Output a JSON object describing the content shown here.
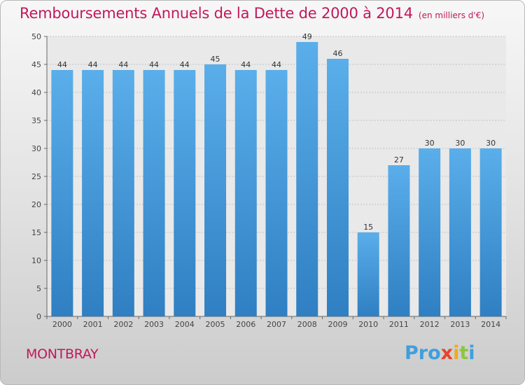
{
  "chart_data": {
    "type": "bar",
    "title": "Remboursements Annuels de la Dette de 2000 à 2014",
    "subtitle": "(en milliers d'€)",
    "categories": [
      "2000",
      "2001",
      "2002",
      "2003",
      "2004",
      "2005",
      "2006",
      "2007",
      "2008",
      "2009",
      "2010",
      "2011",
      "2012",
      "2013",
      "2014"
    ],
    "values": [
      44,
      44,
      44,
      44,
      44,
      45,
      44,
      44,
      49,
      46,
      15,
      27,
      30,
      30,
      30
    ],
    "ylim": [
      0,
      50
    ],
    "yticks": [
      0,
      5,
      10,
      15,
      20,
      25,
      30,
      35,
      40,
      45,
      50
    ],
    "grid": true,
    "bar_color": "#4a9fe0"
  },
  "footer": {
    "town": "MONTBRAY",
    "logo": [
      "Pro",
      "x",
      "i",
      "t",
      "i"
    ]
  }
}
